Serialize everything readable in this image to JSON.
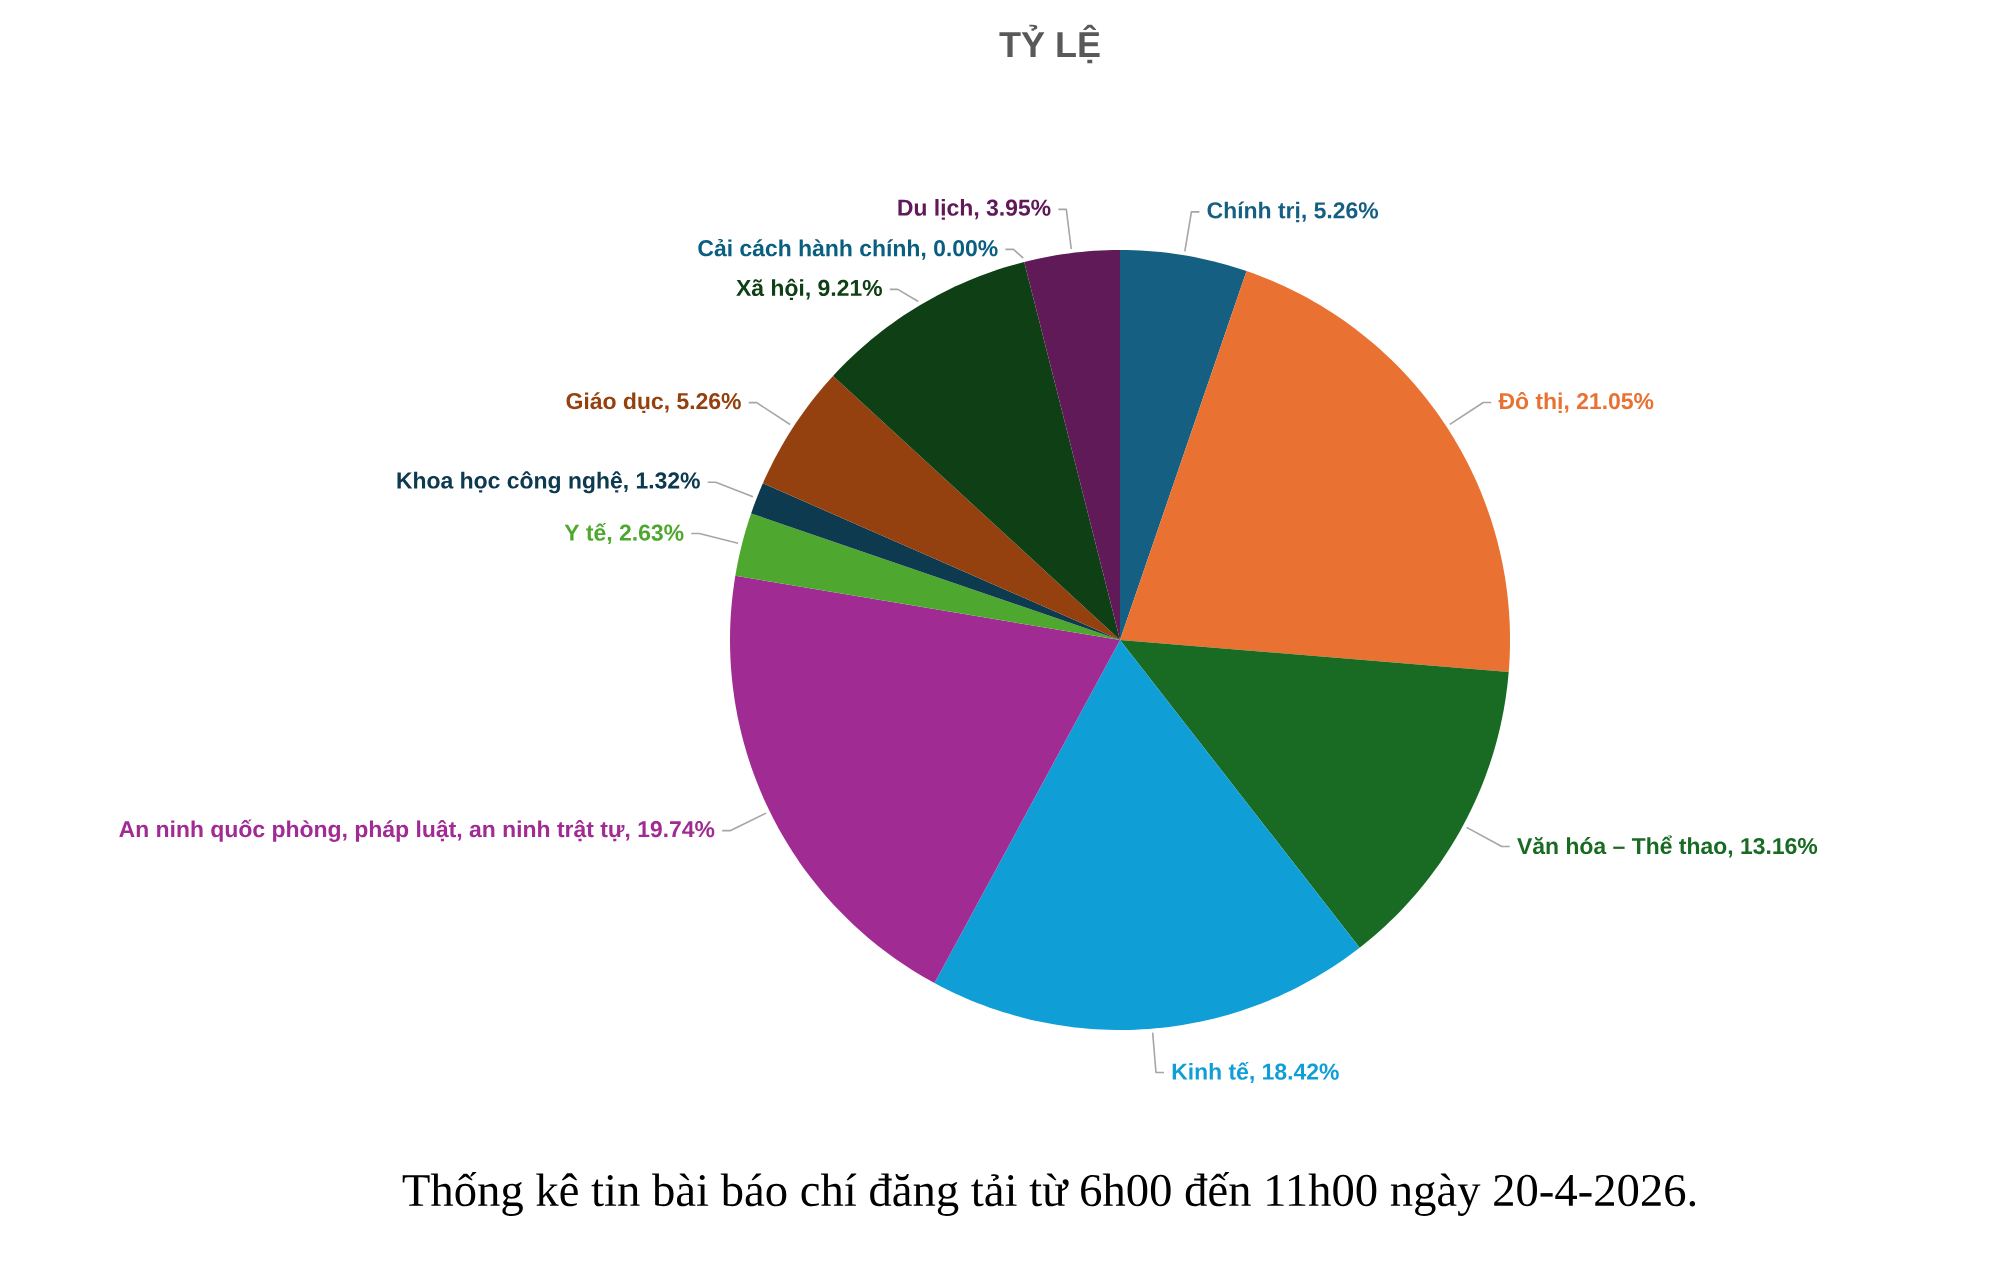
{
  "chart_data": {
    "type": "pie",
    "title": "TỶ LỆ",
    "categories": [
      "Chính trị",
      "Đô thị",
      "Văn hóa – Thể thao",
      "Kinh tế",
      "An ninh quốc phòng, pháp luật, an ninh trật tự",
      "Y tế",
      "Khoa học công nghệ",
      "Giáo dục",
      "Xã hội",
      "Cải cách hành chính",
      "Du lịch"
    ],
    "values": [
      5.26,
      21.05,
      13.16,
      18.42,
      19.74,
      2.63,
      1.32,
      5.26,
      9.21,
      0,
      3.95
    ],
    "colors": [
      "#156082",
      "#E97132",
      "#196B24",
      "#0F9ED5",
      "#A02B93",
      "#4EA72E",
      "#0E3A50",
      "#94400F",
      "#0F3F14",
      "#0A5F80",
      "#5F1A57"
    ],
    "value_labels": [
      ", 5.26%",
      ", 21.05%",
      ", 13.16%",
      ", 18.42%",
      ", 19.74%",
      ", 2.63%",
      ", 1.32%",
      ", 5.26%",
      ", 9.21%",
      ", 0.00%",
      ", 3.95%"
    ],
    "annotations": [
      "Thống kê tin bài báo chí đăng tải từ 6h00 đến 11h00 ngày 20-4-2026."
    ]
  }
}
